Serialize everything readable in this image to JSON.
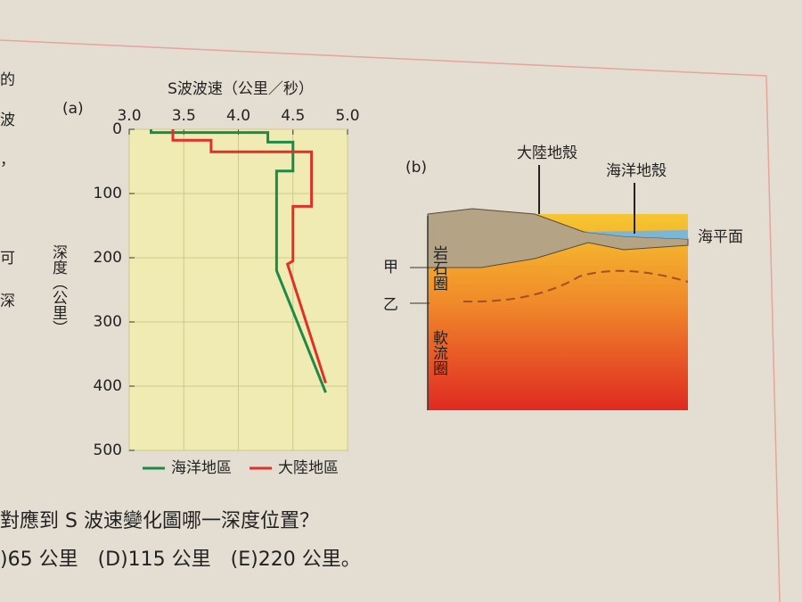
{
  "chart_data": {
    "type": "line",
    "panel_label": "(a)",
    "x_label": "S波波速（公里／秒）",
    "y_label": "深度（公里）",
    "xlim": [
      3.0,
      5.0
    ],
    "xticks": [
      {
        "value": 3.0,
        "label": "3.0"
      },
      3.5,
      {
        "value": 4.0,
        "label": "4.0"
      },
      4.5,
      {
        "value": 5.0,
        "label": "5.0"
      }
    ],
    "ylim": [
      0,
      500
    ],
    "y_inverted": true,
    "yticks": [
      0,
      100,
      200,
      300,
      400,
      500
    ],
    "grid": true,
    "legend": "bottom",
    "series": [
      {
        "name": "海洋地區",
        "color": "#1e8a4a",
        "x": [
          3.2,
          3.2,
          4.27,
          4.27,
          4.5,
          4.5,
          4.35,
          4.35,
          4.8
        ],
        "values": [
          0,
          5,
          5,
          20,
          20,
          65,
          65,
          220,
          410
        ]
      },
      {
        "name": "大陸地區",
        "color": "#e0302a",
        "x": [
          3.4,
          3.4,
          3.75,
          3.75,
          4.67,
          4.67,
          4.5,
          4.5,
          4.45,
          4.8
        ],
        "values": [
          0,
          17,
          17,
          35,
          35,
          120,
          120,
          205,
          210,
          395
        ]
      }
    ]
  },
  "diagram": {
    "label": "(b)",
    "continental_crust": "大陸地殼",
    "oceanic_crust": "海洋地殼",
    "sea_level": "海平面",
    "point_a": "甲",
    "point_b": "乙",
    "lithosphere": "岩石圈",
    "asthenosphere": "軟流圈"
  },
  "page_text": {
    "margin": [
      "的",
      "波",
      "，",
      "可",
      "深"
    ],
    "question": "對應到 S 波速變化圖哪一深度位置？",
    "options": ")65 公里　(D)115 公里　(E)220 公里。"
  }
}
